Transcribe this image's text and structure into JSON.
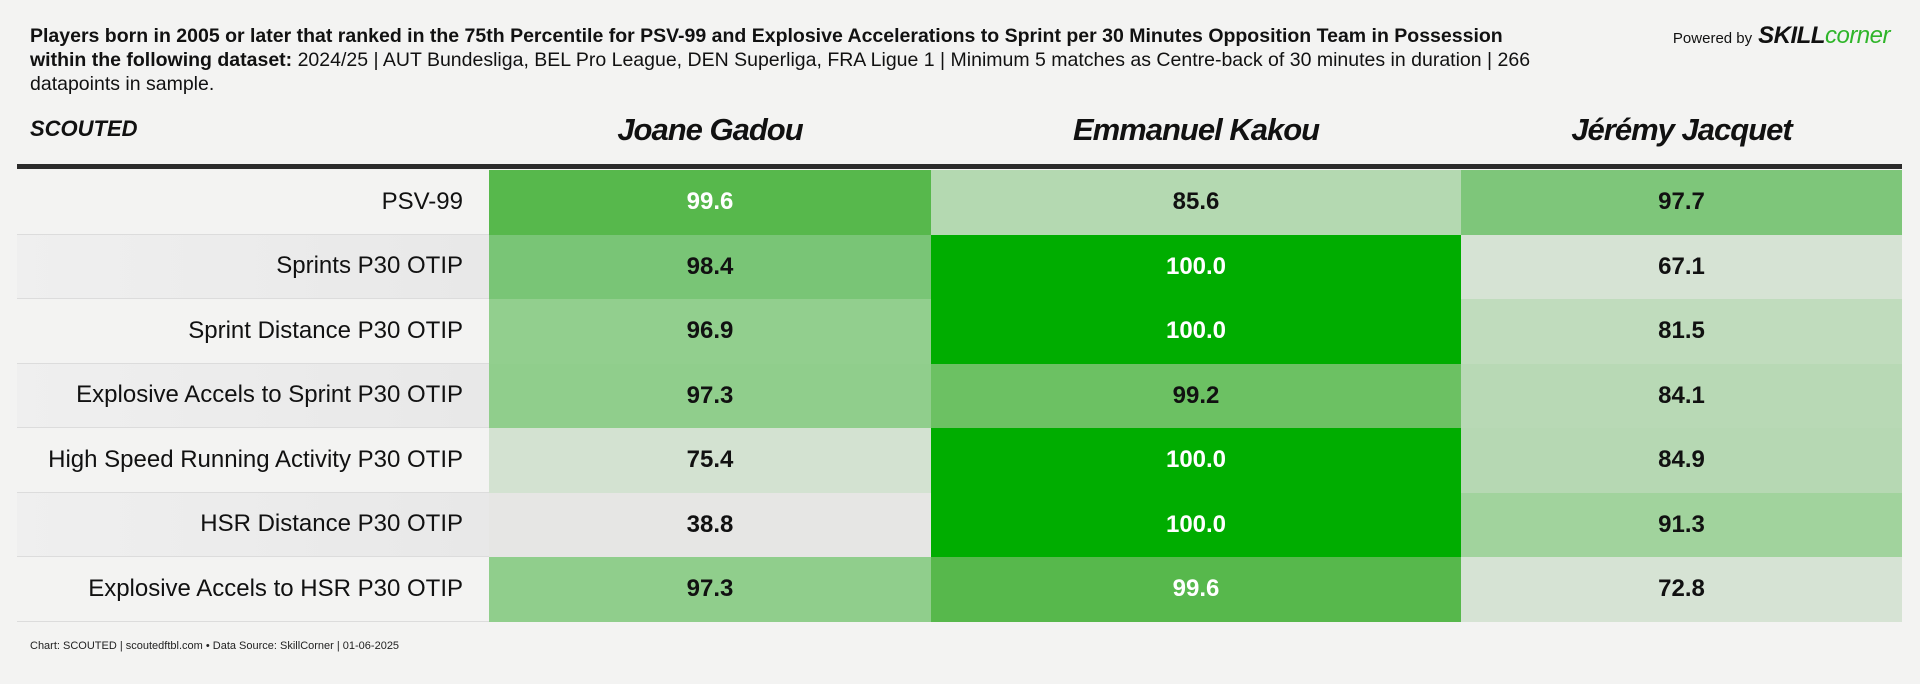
{
  "header": {
    "title_bold": "Players born in 2005 or later that ranked in the 75th Percentile for PSV-99 and Explosive Accelerations to Sprint per 30 Minutes Opposition Team in Possession within the following dataset:",
    "title_rest": "2024/25 | AUT Bundesliga, BEL Pro League, DEN Superliga, FRA Ligue 1 | Minimum 5 matches as Centre-back of 30 minutes in duration | 266 datapoints in sample.",
    "powered_by": "Powered by",
    "brand_skill": "SKILL",
    "brand_corner": "corner"
  },
  "table": {
    "corner_label": "SCOUTED",
    "columns": [
      "Joane Gadou",
      "Emmanuel Kakou",
      "Jérémy Jacquet"
    ],
    "rows": [
      {
        "label": "PSV-99",
        "values": [
          "99.6",
          "85.6",
          "97.7"
        ],
        "colors": [
          "#57b84c",
          "#b4d9b1",
          "#7ec67a"
        ]
      },
      {
        "label": "Sprints P30 OTIP",
        "values": [
          "98.4",
          "100.0",
          "67.1"
        ],
        "colors": [
          "#79c576",
          "#00ad00",
          "#d6e3d4"
        ]
      },
      {
        "label": "Sprint Distance P30 OTIP",
        "values": [
          "96.9",
          "100.0",
          "81.5"
        ],
        "colors": [
          "#92cf8e",
          "#00ad00",
          "#c0dcbd"
        ]
      },
      {
        "label": "Explosive Accels to Sprint P30 OTIP",
        "values": [
          "97.3",
          "99.2",
          "84.1"
        ],
        "colors": [
          "#90ce8c",
          "#6cc163",
          "#b8d9b5"
        ]
      },
      {
        "label": "High Speed Running Activity P30 OTIP",
        "values": [
          "75.4",
          "100.0",
          "84.9"
        ],
        "colors": [
          "#d3e2d1",
          "#00ad00",
          "#b6d8b3"
        ]
      },
      {
        "label": "HSR Distance P30 OTIP",
        "values": [
          "38.8",
          "100.0",
          "91.3"
        ],
        "colors": [
          "#e6e6e4",
          "#00ad00",
          "#a1d39d"
        ]
      },
      {
        "label": "Explosive Accels to HSR P30 OTIP",
        "values": [
          "97.3",
          "99.6",
          "72.8"
        ],
        "colors": [
          "#90ce8c",
          "#57b84c",
          "#d6e3d4"
        ]
      }
    ]
  },
  "footer": "Chart: SCOUTED | scoutedftbl.com • Data Source: SkillCorner | 01-06-2025"
}
